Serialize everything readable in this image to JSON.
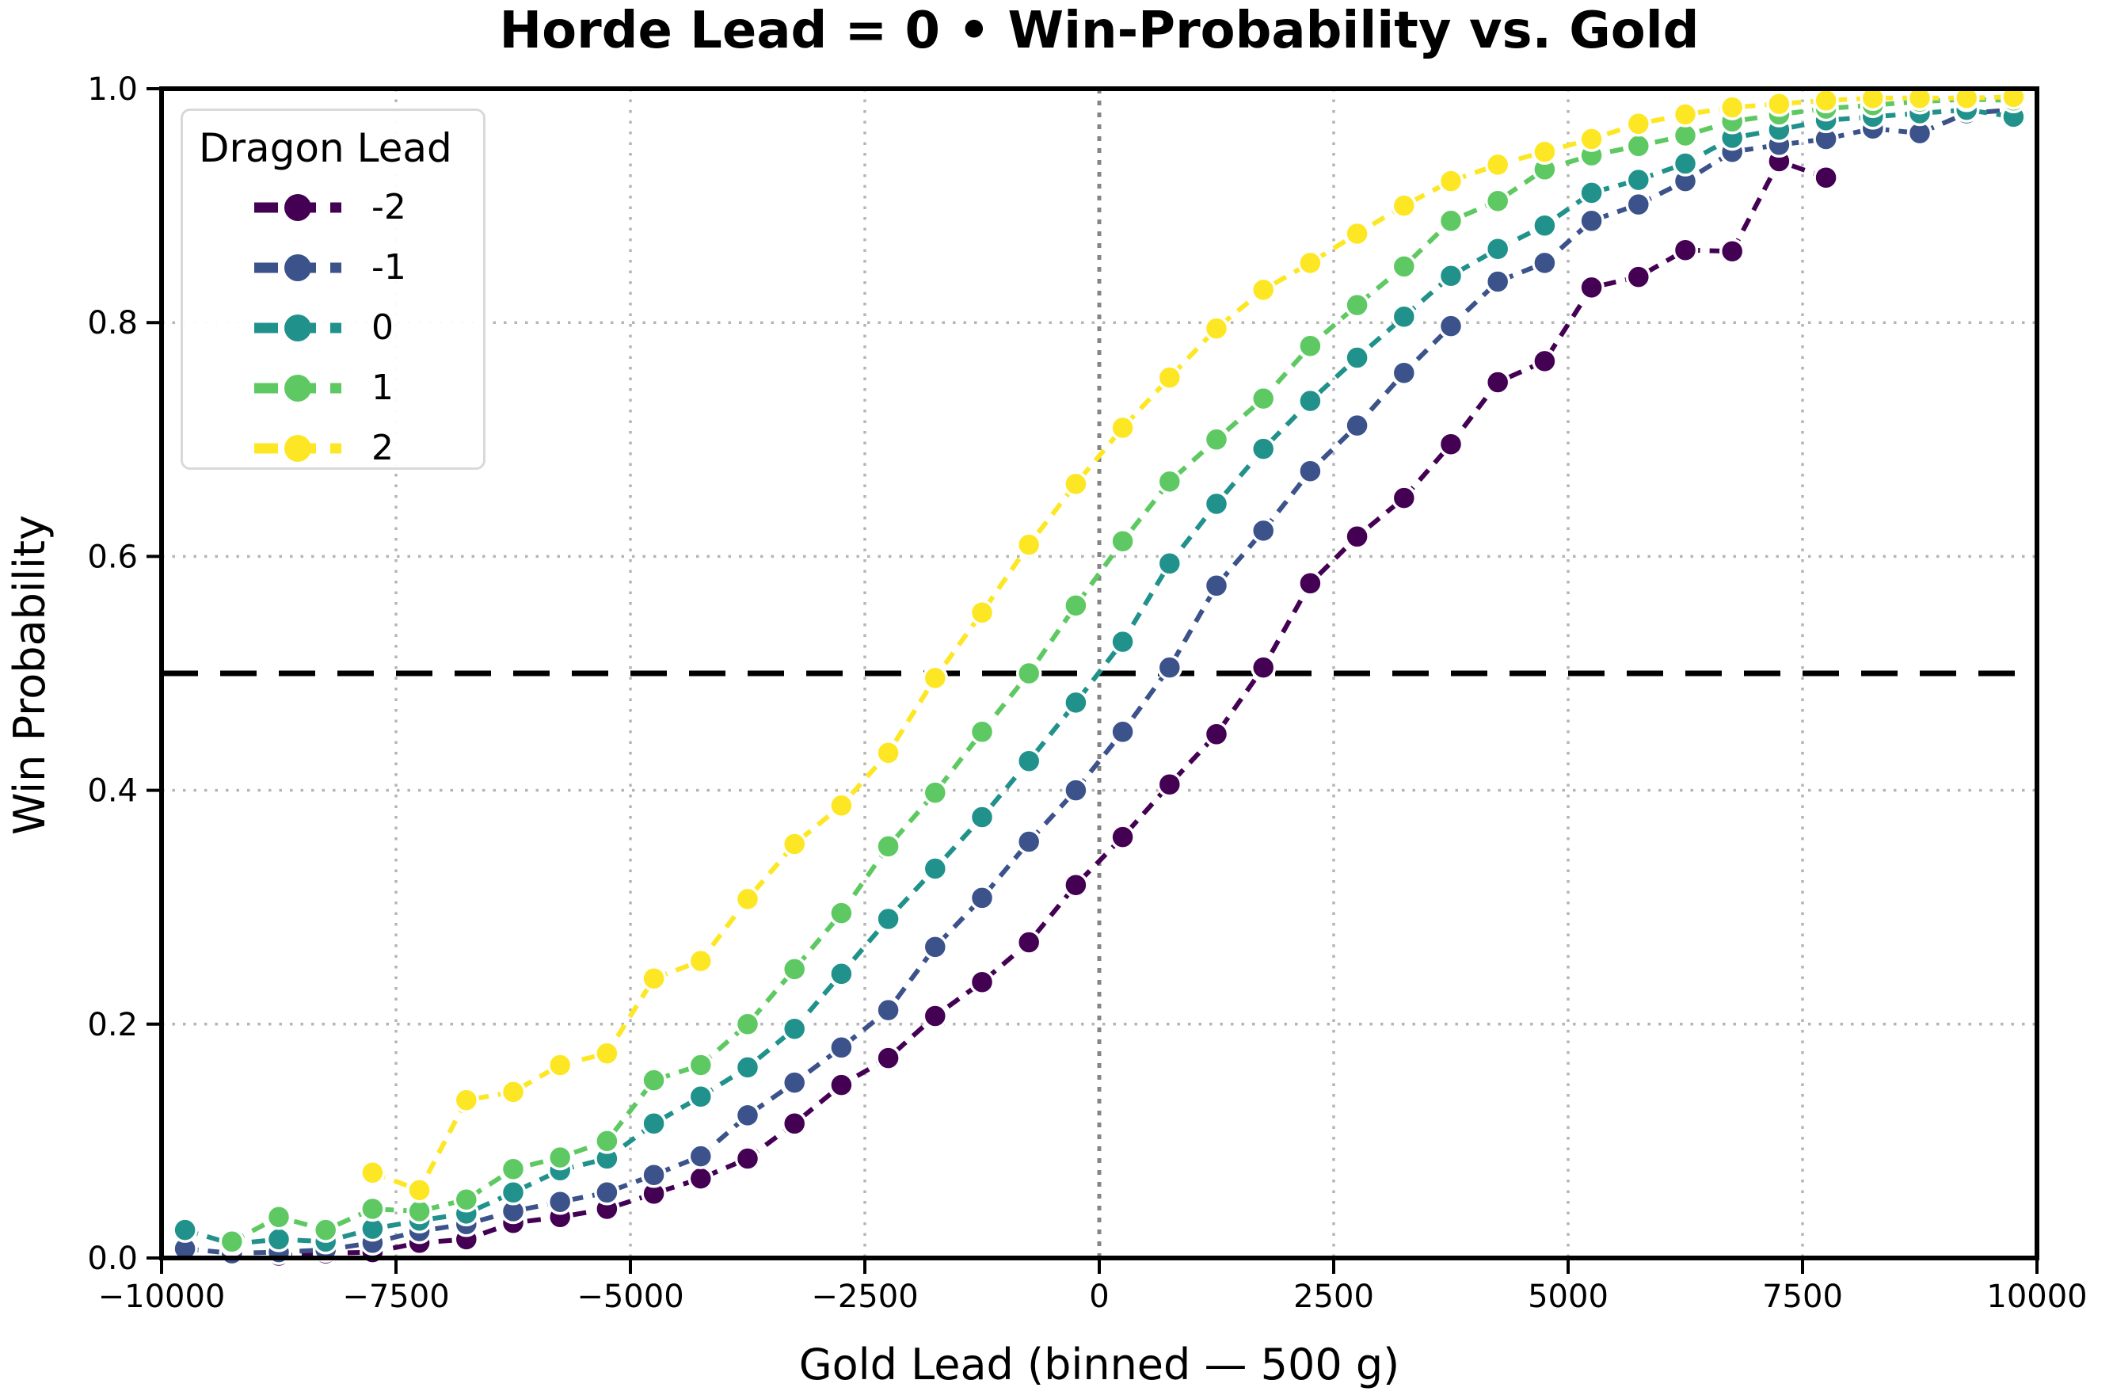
{
  "title": "Horde Lead = 0 • Win-Probability vs. Gold",
  "chart_data": {
    "type": "line",
    "title": "Horde Lead = 0 • Win-Probability vs. Gold",
    "xlabel": "Gold Lead (binned — 500 g)",
    "ylabel": "Win Probability",
    "xlim": [
      -10000,
      10000
    ],
    "ylim": [
      0.0,
      1.0
    ],
    "x_ticks": [
      -10000,
      -7500,
      -5000,
      -2500,
      0,
      2500,
      5000,
      7500,
      10000
    ],
    "x_tick_labels": [
      "−10000",
      "−7500",
      "−5000",
      "−2500",
      "0",
      "2500",
      "5000",
      "7500",
      "10000"
    ],
    "y_ticks": [
      0.0,
      0.2,
      0.4,
      0.6,
      0.8,
      1.0
    ],
    "y_tick_labels": [
      "0.0",
      "0.2",
      "0.4",
      "0.6",
      "0.8",
      "1.0"
    ],
    "grid": {
      "style": "dotted",
      "color": "#b5b5b5",
      "on": true
    },
    "reference_lines": {
      "horizontal_dashed_black_at": 0.5,
      "vertical_dashed_gray_at": 0
    },
    "legend": {
      "title": "Dragon Lead",
      "position": "upper-left"
    },
    "bin_width": 500,
    "marker": "circle",
    "line_style": "dashed",
    "x": [
      -9750,
      -9250,
      -8750,
      -8250,
      -7750,
      -7250,
      -6750,
      -6250,
      -5750,
      -5250,
      -4750,
      -4250,
      -3750,
      -3250,
      -2750,
      -2250,
      -1750,
      -1250,
      -750,
      -250,
      250,
      750,
      1250,
      1750,
      2250,
      2750,
      3250,
      3750,
      4250,
      4750,
      5250,
      5750,
      6250,
      6750,
      7250,
      7750,
      8250,
      8750,
      9250,
      9750
    ],
    "series": [
      {
        "name": "-2",
        "color": "#440154",
        "values": [
          null,
          null,
          0.002,
          0.004,
          0.005,
          0.013,
          0.016,
          0.03,
          0.035,
          0.042,
          0.055,
          0.068,
          0.085,
          0.115,
          0.148,
          0.171,
          0.207,
          0.236,
          0.27,
          0.319,
          0.36,
          0.405,
          0.448,
          0.505,
          0.577,
          0.617,
          0.65,
          0.696,
          0.749,
          0.767,
          0.83,
          0.839,
          0.862,
          0.861,
          0.938,
          0.924,
          null,
          null,
          null,
          null
        ]
      },
      {
        "name": "-1",
        "color": "#3b528b",
        "values": [
          0.008,
          0.004,
          0.005,
          0.007,
          0.013,
          0.023,
          0.029,
          0.04,
          0.048,
          0.056,
          0.071,
          0.087,
          0.122,
          0.15,
          0.18,
          0.212,
          0.266,
          0.308,
          0.356,
          0.4,
          0.45,
          0.505,
          0.575,
          0.622,
          0.673,
          0.712,
          0.757,
          0.797,
          0.835,
          0.851,
          0.887,
          0.901,
          0.921,
          0.946,
          0.952,
          0.957,
          0.966,
          0.962,
          0.979,
          0.982
        ]
      },
      {
        "name": "0",
        "color": "#21918c",
        "values": [
          0.024,
          0.012,
          0.016,
          0.014,
          0.025,
          0.032,
          0.038,
          0.056,
          0.075,
          0.085,
          0.115,
          0.138,
          0.163,
          0.196,
          0.243,
          0.29,
          0.333,
          0.377,
          0.425,
          0.475,
          0.527,
          0.594,
          0.645,
          0.692,
          0.733,
          0.77,
          0.805,
          0.84,
          0.863,
          0.883,
          0.911,
          0.922,
          0.936,
          0.958,
          0.965,
          0.973,
          0.976,
          0.979,
          0.982,
          0.976
        ]
      },
      {
        "name": "1",
        "color": "#5ec962",
        "values": [
          null,
          0.014,
          0.035,
          0.024,
          0.042,
          0.04,
          0.05,
          0.076,
          0.086,
          0.1,
          0.152,
          0.165,
          0.2,
          0.247,
          0.295,
          0.352,
          0.398,
          0.45,
          0.5,
          0.558,
          0.613,
          0.664,
          0.7,
          0.735,
          0.78,
          0.815,
          0.848,
          0.887,
          0.904,
          0.931,
          0.943,
          0.951,
          0.96,
          0.972,
          0.978,
          0.983,
          0.986,
          0.989,
          0.991,
          0.99
        ]
      },
      {
        "name": "2",
        "color": "#fde725",
        "values": [
          null,
          null,
          null,
          null,
          0.073,
          0.058,
          0.135,
          0.142,
          0.165,
          0.175,
          0.239,
          0.254,
          0.307,
          0.354,
          0.387,
          0.432,
          0.496,
          0.552,
          0.61,
          0.662,
          0.71,
          0.753,
          0.795,
          0.828,
          0.851,
          0.876,
          0.9,
          0.921,
          0.935,
          0.946,
          0.957,
          0.97,
          0.978,
          0.984,
          0.987,
          0.99,
          0.992,
          0.992,
          0.992,
          0.993
        ]
      }
    ],
    "colors": {
      "grid": "#b5b5b5",
      "zero_line": "#858585",
      "half_line": "#000000",
      "spine": "#000000",
      "marker_edge": "#ffffff",
      "background": "#ffffff"
    }
  }
}
